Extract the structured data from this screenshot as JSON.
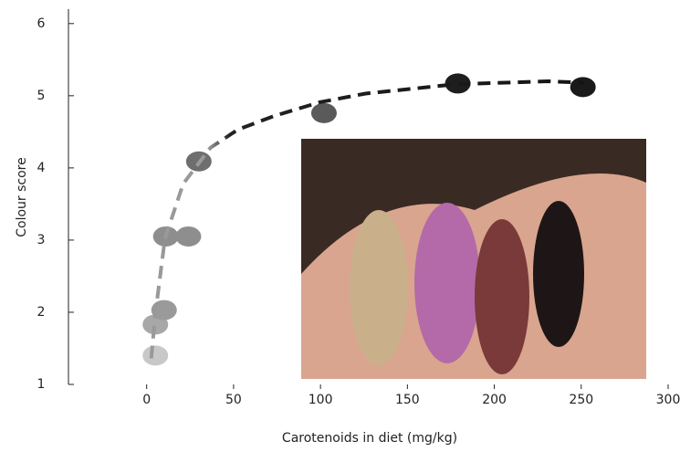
{
  "chart_data": {
    "type": "scatter",
    "x_label": "Carotenoids in diet (mg/kg)",
    "y_label": "Colour score",
    "x": [
      5,
      5,
      10,
      11,
      24,
      30,
      102,
      179,
      251
    ],
    "values": [
      1.4,
      1.83,
      2.03,
      3.05,
      3.05,
      4.09,
      4.76,
      5.17,
      5.12
    ],
    "colors": [
      "#c8c8c8",
      "#a8a8a8",
      "#9a9a9a",
      "#8e8e8e",
      "#8e8e8e",
      "#6e6e6e",
      "#5a5a5a",
      "#1e1e1e",
      "#1a1a1a"
    ],
    "fit_x": [
      2.6,
      5.2,
      10.5,
      21,
      36.7,
      52.4,
      73.4,
      99.6,
      125.9,
      178,
      231,
      252
    ],
    "fit_y": [
      1.36,
      2.02,
      3.02,
      3.78,
      4.28,
      4.53,
      4.72,
      4.91,
      5.03,
      5.16,
      5.2,
      5.18
    ],
    "xlim": [
      -45,
      300
    ],
    "ylim": [
      1,
      6.2
    ],
    "xticks": [
      0,
      50,
      100,
      150,
      200,
      250,
      300
    ],
    "yticks": [
      1,
      2,
      3,
      4,
      5,
      6
    ]
  }
}
